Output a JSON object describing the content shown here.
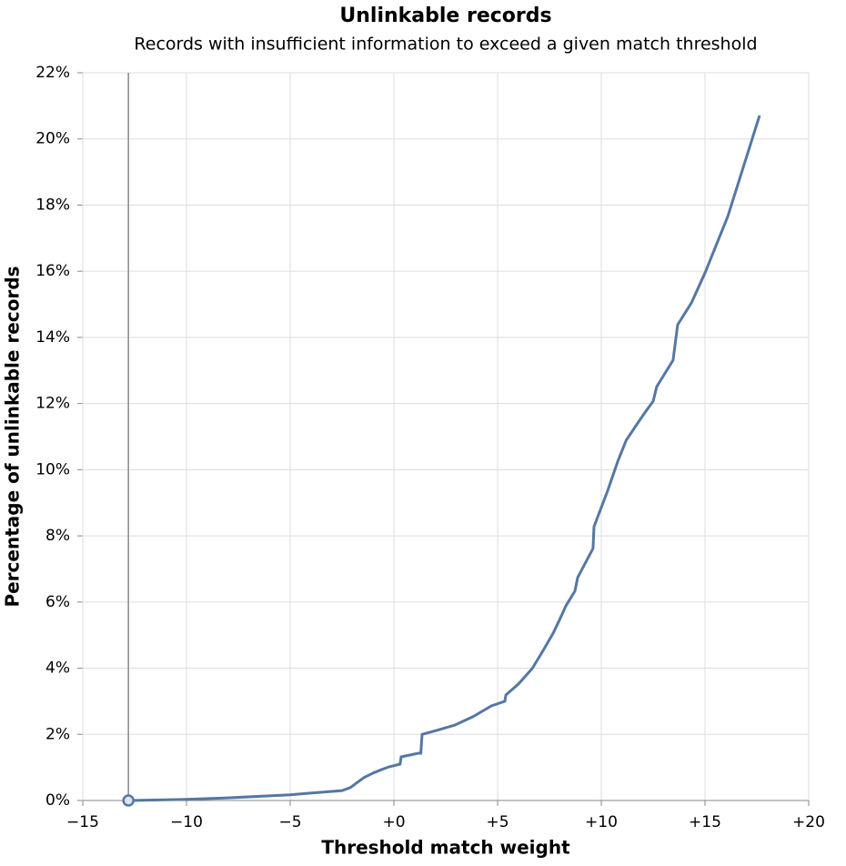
{
  "chart_data": {
    "type": "line",
    "title": "Unlinkable records",
    "subtitle": "Records with insufficient information to exceed a given match threshold",
    "x_label": "Threshold match weight",
    "y_label": "Percentage of unlinkable records",
    "color": "#5577a3",
    "grid": true,
    "x": [
      -12.76,
      -10.2,
      -8.0,
      -5.0,
      -4.1,
      -2.5,
      -2.1,
      -1.45,
      -1.0,
      -0.57,
      -0.22,
      0.3,
      0.35,
      1.18,
      1.3,
      1.36,
      2.06,
      2.94,
      3.8,
      4.7,
      5.35,
      5.4,
      6.0,
      6.67,
      7.2,
      7.68,
      7.98,
      8.3,
      8.73,
      8.86,
      9.6,
      9.65,
      10.3,
      10.8,
      11.2,
      11.7,
      12.06,
      12.5,
      12.67,
      13.46,
      13.68,
      14.34,
      15.0,
      16.1,
      17.63
    ],
    "values": [
      0,
      0.03,
      0.08,
      0.17,
      0.22,
      0.3,
      0.39,
      0.69,
      0.83,
      0.94,
      1.02,
      1.1,
      1.32,
      1.43,
      1.43,
      2.0,
      2.12,
      2.28,
      2.53,
      2.86,
      3.0,
      3.19,
      3.52,
      3.99,
      4.54,
      5.06,
      5.45,
      5.89,
      6.33,
      6.74,
      7.62,
      8.28,
      9.35,
      10.26,
      10.89,
      11.36,
      11.69,
      12.07,
      12.51,
      13.31,
      14.38,
      15.04,
      15.95,
      17.66,
      20.71
    ],
    "marker": {
      "x": -12.8,
      "y": 0
    },
    "xlim": [
      -15,
      20
    ],
    "ylim": [
      0,
      22
    ],
    "xticks": [
      {
        "value": -15,
        "label": "−15"
      },
      {
        "value": -10,
        "label": "−10"
      },
      {
        "value": -5,
        "label": "−5"
      },
      {
        "value": 0,
        "label": "+0"
      },
      {
        "value": 5,
        "label": "+5"
      },
      {
        "value": 10,
        "label": "+10"
      },
      {
        "value": 15,
        "label": "+15"
      },
      {
        "value": 20,
        "label": "+20"
      }
    ],
    "yticks": [
      {
        "value": 0,
        "label": "0%"
      },
      {
        "value": 2,
        "label": "2%"
      },
      {
        "value": 4,
        "label": "4%"
      },
      {
        "value": 6,
        "label": "6%"
      },
      {
        "value": 8,
        "label": "8%"
      },
      {
        "value": 10,
        "label": "10%"
      },
      {
        "value": 12,
        "label": "12%"
      },
      {
        "value": 14,
        "label": "14%"
      },
      {
        "value": 16,
        "label": "16%"
      },
      {
        "value": 18,
        "label": "18%"
      },
      {
        "value": 20,
        "label": "20%"
      },
      {
        "value": 22,
        "label": "22%"
      }
    ]
  }
}
